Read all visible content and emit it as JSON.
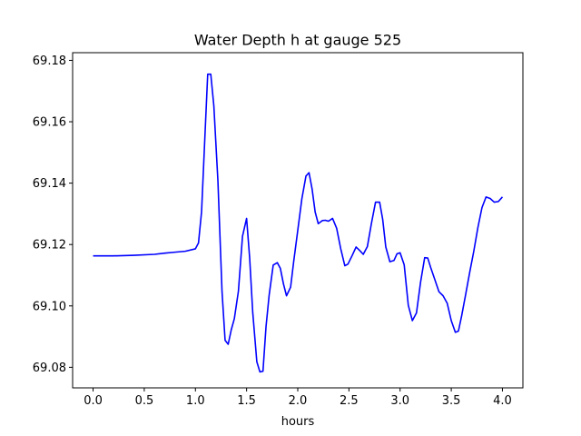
{
  "chart_data": {
    "type": "line",
    "title": "Water Depth h at gauge 525",
    "xlabel": "hours",
    "ylabel": "",
    "xlim": [
      -0.2,
      4.2
    ],
    "ylim": [
      69.0733,
      69.1825
    ],
    "xticks": [
      0.0,
      0.5,
      1.0,
      1.5,
      2.0,
      2.5,
      3.0,
      3.5,
      4.0
    ],
    "xtick_labels": [
      "0.0",
      "0.5",
      "1.0",
      "1.5",
      "2.0",
      "2.5",
      "3.0",
      "3.5",
      "4.0"
    ],
    "yticks": [
      69.08,
      69.1,
      69.12,
      69.14,
      69.16,
      69.18
    ],
    "ytick_labels": [
      "69.08",
      "69.10",
      "69.12",
      "69.14",
      "69.16",
      "69.18"
    ],
    "grid": false,
    "series": [
      {
        "name": "",
        "color": "#0000ff",
        "x": [
          0.0,
          0.2,
          0.4,
          0.6,
          0.7,
          0.8,
          0.9,
          1.0,
          1.03,
          1.06,
          1.09,
          1.12,
          1.15,
          1.18,
          1.22,
          1.26,
          1.29,
          1.32,
          1.35,
          1.38,
          1.42,
          1.46,
          1.5,
          1.53,
          1.56,
          1.6,
          1.63,
          1.66,
          1.69,
          1.72,
          1.76,
          1.8,
          1.83,
          1.86,
          1.89,
          1.93,
          1.96,
          2.0,
          2.04,
          2.08,
          2.11,
          2.14,
          2.17,
          2.2,
          2.24,
          2.27,
          2.3,
          2.34,
          2.38,
          2.42,
          2.46,
          2.49,
          2.53,
          2.57,
          2.61,
          2.64,
          2.68,
          2.72,
          2.76,
          2.8,
          2.83,
          2.86,
          2.9,
          2.94,
          2.97,
          3.0,
          3.04,
          3.08,
          3.12,
          3.16,
          3.2,
          3.24,
          3.27,
          3.3,
          3.34,
          3.38,
          3.42,
          3.46,
          3.5,
          3.54,
          3.57,
          3.6,
          3.64,
          3.68,
          3.72,
          3.76,
          3.8,
          3.84,
          3.88,
          3.92,
          3.96,
          4.0
        ],
        "y": [
          69.1163,
          69.1163,
          69.1165,
          69.1168,
          69.1172,
          69.1175,
          69.1178,
          69.1186,
          69.1205,
          69.1307,
          69.1532,
          69.1755,
          69.1755,
          69.1652,
          69.1406,
          69.1046,
          69.0888,
          69.0875,
          69.0922,
          69.0958,
          69.1048,
          69.1227,
          69.1285,
          69.1156,
          69.0979,
          69.0818,
          69.0785,
          69.0787,
          69.0933,
          69.1034,
          69.1133,
          69.1141,
          69.1122,
          69.1072,
          69.1033,
          69.1061,
          69.1144,
          69.1246,
          69.1349,
          69.1423,
          69.1434,
          69.1381,
          69.1306,
          69.1268,
          69.1278,
          69.1279,
          69.1276,
          69.1285,
          69.1253,
          69.1186,
          69.1131,
          69.1136,
          69.1163,
          69.1192,
          69.1179,
          69.1168,
          69.1193,
          69.1269,
          69.1338,
          69.1338,
          69.1282,
          69.1192,
          69.1144,
          69.1148,
          69.117,
          69.1173,
          69.1134,
          69.1002,
          69.0952,
          69.0977,
          69.1077,
          69.1157,
          69.1156,
          69.1124,
          69.1085,
          69.1046,
          69.1033,
          69.1009,
          69.0952,
          69.0914,
          69.0918,
          69.0965,
          69.1036,
          69.1109,
          69.1178,
          69.1255,
          69.132,
          69.1355,
          69.135,
          69.1338,
          69.134,
          69.1355
        ]
      }
    ]
  }
}
